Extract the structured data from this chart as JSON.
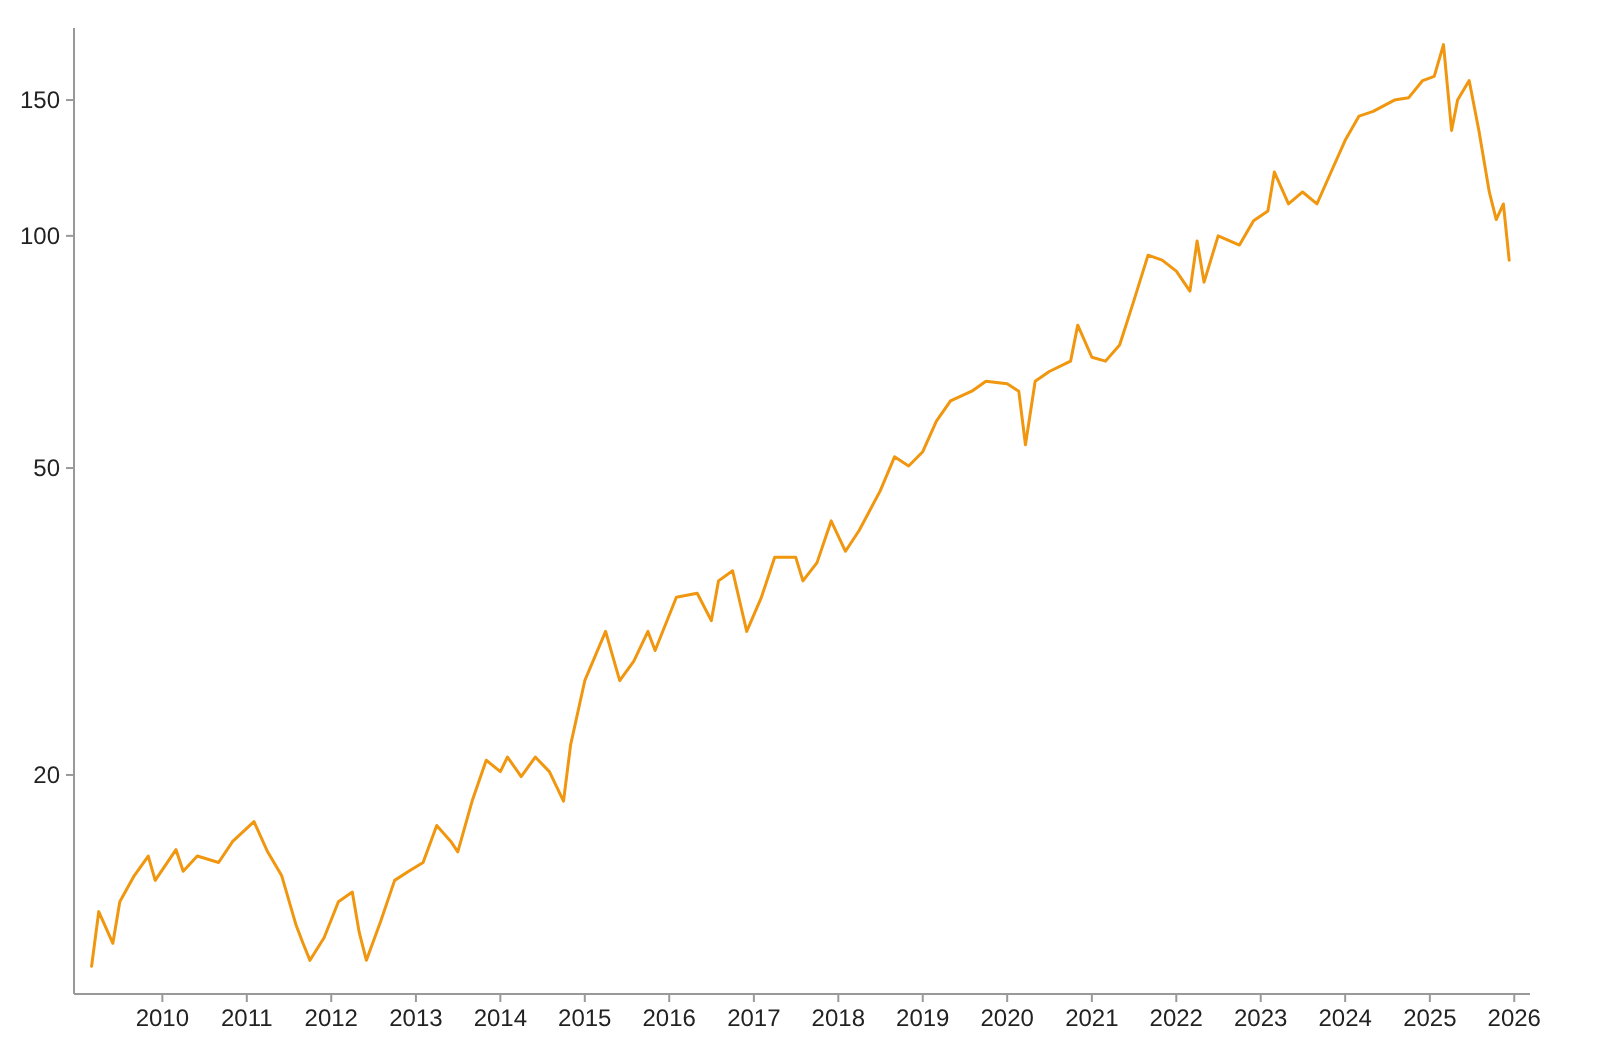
{
  "chart_data": {
    "type": "line",
    "log": true,
    "grid": false,
    "marker": "none",
    "line_style": "solid",
    "xlim": [
      "2008-12-15",
      "2026-03-10"
    ],
    "xticks": [
      "2010",
      "2011",
      "2012",
      "2013",
      "2014",
      "2015",
      "2016",
      "2017",
      "2018",
      "2019",
      "2020",
      "2021",
      "2022",
      "2023",
      "2024",
      "2025",
      "2026"
    ],
    "ylim": [
      10.4,
      186
    ],
    "yticks": [
      20,
      50,
      100,
      150
    ],
    "series": [
      {
        "color": "#f0960f",
        "x": [
          "2009-03",
          "2009-04",
          "2009-06",
          "2009-07",
          "2009-09",
          "2009-11",
          "2009-12",
          "2010-03",
          "2010-04",
          "2010-06",
          "2010-09",
          "2010-11",
          "2011-02",
          "2011-04",
          "2011-06",
          "2011-08",
          "2011-09",
          "2011-10",
          "2011-12",
          "2012-02",
          "2012-04",
          "2012-05",
          "2012-06",
          "2012-08",
          "2012-10",
          "2012-12",
          "2013-02",
          "2013-04",
          "2013-06",
          "2013-07",
          "2013-09",
          "2013-11",
          "2014-01",
          "2014-02",
          "2014-04",
          "2014-06",
          "2014-08",
          "2014-10",
          "2014-11",
          "2015-01",
          "2015-04",
          "2015-06",
          "2015-08",
          "2015-10",
          "2015-11",
          "2016-02",
          "2016-05",
          "2016-07",
          "2016-08",
          "2016-10",
          "2016-12",
          "2017-02",
          "2017-04",
          "2017-07",
          "2017-08",
          "2017-10",
          "2017-12",
          "2018-02",
          "2018-04",
          "2018-07",
          "2018-09",
          "2018-11",
          "2019-01",
          "2019-03",
          "2019-05",
          "2019-08",
          "2019-10",
          "2020-01",
          "2020-02-20",
          "2020-03-20",
          "2020-05",
          "2020-07",
          "2020-10",
          "2020-11",
          "2021-01",
          "2021-03",
          "2021-05",
          "2021-07",
          "2021-09",
          "2021-11",
          "2022-01",
          "2022-03",
          "2022-04",
          "2022-05",
          "2022-07",
          "2022-10",
          "2022-12",
          "2023-02",
          "2023-03",
          "2023-05",
          "2023-07",
          "2023-09",
          "2023-11",
          "2024-01",
          "2024-03",
          "2024-05",
          "2024-08",
          "2024-10",
          "2024-12",
          "2025-01-20",
          "2025-03-01",
          "2025-04-05",
          "2025-05",
          "2025-06-20",
          "2025-08",
          "2025-09-15",
          "2025-10-15",
          "2025-11-15",
          "2025-12-10"
        ],
        "values": [
          11.3,
          13.3,
          12.1,
          13.7,
          14.8,
          15.7,
          14.6,
          16.0,
          15.0,
          15.7,
          15.4,
          16.4,
          17.4,
          15.9,
          14.8,
          12.8,
          12.1,
          11.5,
          12.3,
          13.7,
          14.1,
          12.5,
          11.5,
          12.9,
          14.6,
          15.0,
          15.4,
          17.2,
          16.4,
          15.9,
          18.5,
          20.9,
          20.2,
          21.1,
          19.9,
          21.1,
          20.2,
          18.5,
          21.9,
          26.5,
          30.7,
          26.5,
          28.1,
          30.7,
          29.0,
          34.0,
          34.4,
          31.7,
          35.7,
          36.8,
          30.7,
          33.9,
          38.3,
          38.3,
          35.7,
          37.7,
          42.7,
          39.0,
          41.5,
          46.7,
          51.7,
          50.3,
          52.5,
          57.5,
          61.1,
          62.9,
          64.8,
          64.3,
          62.9,
          53.6,
          64.8,
          66.7,
          68.8,
          76.6,
          69.6,
          68.8,
          72.2,
          82.3,
          94.4,
          93.0,
          90.0,
          84.8,
          98.5,
          87.1,
          100,
          97.3,
          104.6,
          107.7,
          121,
          110,
          114,
          110,
          121,
          133,
          143,
          145,
          150,
          151,
          159,
          161,
          177,
          137,
          150,
          159,
          137,
          114,
          105,
          110,
          93
        ]
      }
    ]
  }
}
